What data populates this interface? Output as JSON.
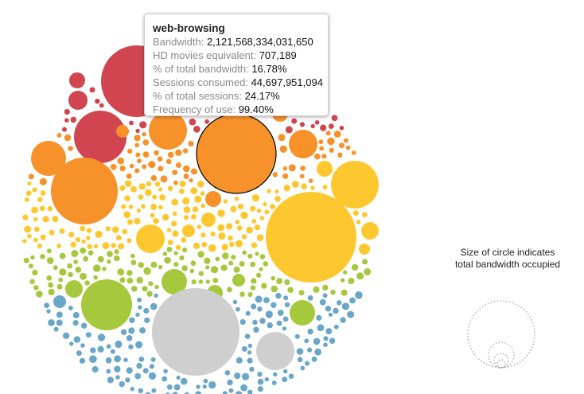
{
  "chart_data": {
    "type": "bubble",
    "title": "",
    "tooltip": {
      "title": "web-browsing",
      "rows": [
        {
          "label": "Bandwidth:",
          "value": "2,121,568,334,031,650"
        },
        {
          "label": "HD movies equivalent:",
          "value": "707,189"
        },
        {
          "label": "% of total bandwidth:",
          "value": "16.78%"
        },
        {
          "label": "Sessions consumed:",
          "value": "44,697,951,094"
        },
        {
          "label": "% of total sessions:",
          "value": "24.17%"
        },
        {
          "label": "Frequency of use:",
          "value": "99.40%"
        }
      ]
    },
    "legend_text": {
      "line1": "Size of circle indicates",
      "line2": "total bandwidth occupied"
    },
    "colors": {
      "red": "#d0454f",
      "orange": "#f7912a",
      "yellow": "#fdc82f",
      "green": "#a6c83c",
      "blue": "#6aa6c8",
      "gray": "#cfcfcf",
      "highlight_stroke": "#000000",
      "legend_stroke": "#aaaaaa"
    }
  }
}
